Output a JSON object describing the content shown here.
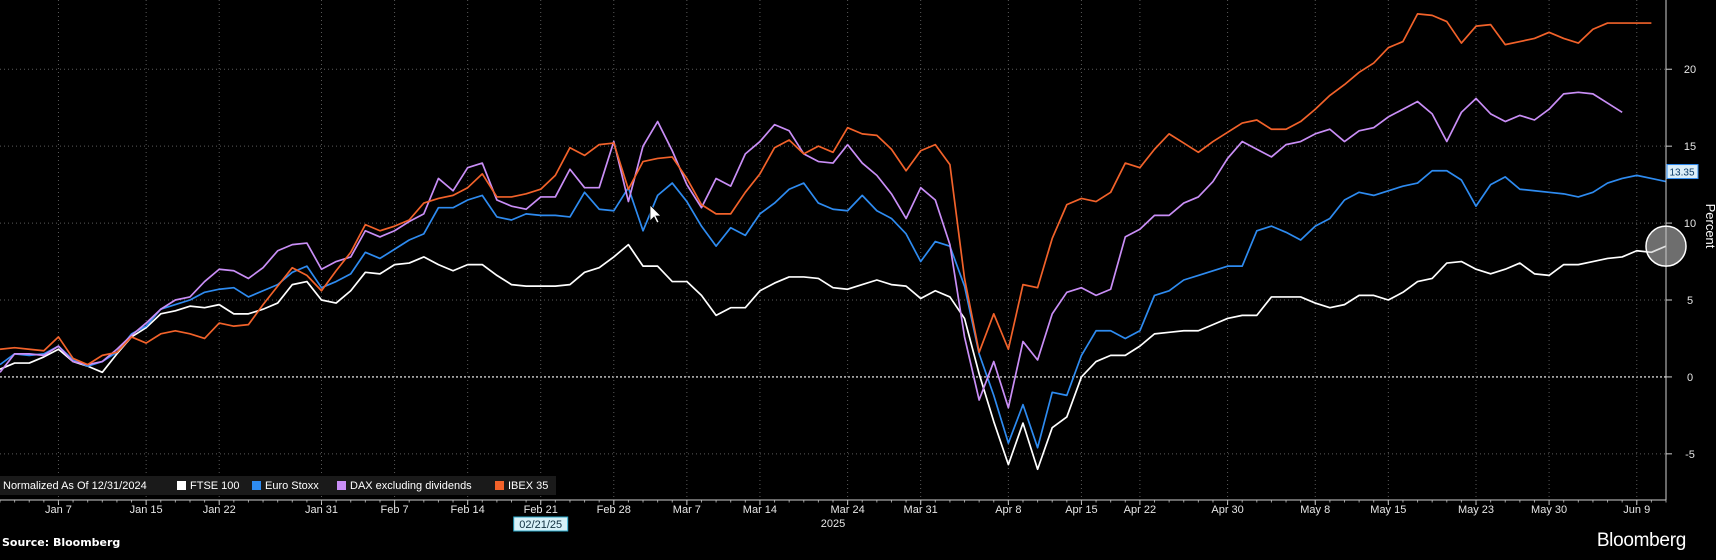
{
  "source_label": "Source: Bloomberg",
  "brand": "Bloomberg",
  "chart_data": {
    "type": "line",
    "ylabel": "Percent",
    "ylim": [
      -8,
      24.5
    ],
    "yticks": [
      -5,
      0,
      5,
      10,
      15,
      20
    ],
    "zero_line": true,
    "grid": true,
    "legend_placement": "bottom-left",
    "normalized_label": "Normalized As Of 12/31/2024",
    "xtick_labels": [
      "Jan 7",
      "Jan 15",
      "Jan 22",
      "Jan 31",
      "Feb 7",
      "Feb 14",
      "Feb 21",
      "Feb 28",
      "Mar 7",
      "Mar 14",
      "Mar 24",
      "Mar 31",
      "Apr 8",
      "Apr 15",
      "Apr 22",
      "Apr 30",
      "May 8",
      "May 15",
      "May 23",
      "May 30",
      "Jun 9"
    ],
    "xtick_index": [
      4,
      10,
      15,
      22,
      27,
      32,
      37,
      42,
      47,
      52,
      58,
      63,
      69,
      74,
      78,
      84,
      90,
      95,
      101,
      106,
      112
    ],
    "year_label": "2025",
    "year_label_index": 57,
    "crosshair_date": "02/21/25",
    "crosshair_index": 37,
    "last_value_label": "13.35",
    "series": [
      {
        "name": "FTSE 100",
        "color": "#ffffff",
        "values": [
          0.5,
          0.9,
          0.9,
          1.3,
          1.8,
          1.0,
          0.7,
          0.3,
          1.5,
          2.6,
          3.2,
          4.1,
          4.3,
          4.6,
          4.5,
          4.7,
          4.1,
          4.1,
          4.4,
          4.8,
          6.0,
          6.2,
          5.0,
          4.8,
          5.6,
          6.8,
          6.7,
          7.3,
          7.4,
          7.8,
          7.3,
          6.9,
          7.3,
          7.3,
          6.6,
          6.0,
          5.9,
          5.9,
          5.9,
          6.0,
          6.8,
          7.1,
          7.8,
          8.6,
          7.2,
          7.2,
          6.2,
          6.2,
          5.3,
          4.0,
          4.5,
          4.5,
          5.6,
          6.1,
          6.5,
          6.5,
          6.4,
          5.8,
          5.7,
          6.0,
          6.3,
          6.0,
          5.9,
          5.1,
          5.6,
          5.2,
          3.8,
          0.2,
          -2.9,
          -5.7,
          -3.0,
          -6.0,
          -3.3,
          -2.6,
          0.0,
          1.0,
          1.4,
          1.4,
          2.0,
          2.8,
          2.9,
          3.0,
          3.0,
          3.4,
          3.8,
          4.0,
          4.0,
          5.2,
          5.2,
          5.2,
          4.8,
          4.5,
          4.7,
          5.3,
          5.3,
          5.0,
          5.5,
          6.2,
          6.4,
          7.4,
          7.5,
          7.0,
          6.7,
          7.0,
          7.4,
          6.7,
          6.6,
          7.3,
          7.3,
          7.5,
          7.7,
          7.8,
          8.2,
          8.1,
          8.5
        ]
      },
      {
        "name": "Euro Stoxx",
        "color": "#2e8bf0",
        "values": [
          0.8,
          1.5,
          1.4,
          1.5,
          2.0,
          1.1,
          0.7,
          1.0,
          1.6,
          2.8,
          3.3,
          4.4,
          4.7,
          5.0,
          5.5,
          5.7,
          5.8,
          5.2,
          5.6,
          6.0,
          6.8,
          7.2,
          5.8,
          6.2,
          6.7,
          8.1,
          7.7,
          8.3,
          8.9,
          9.3,
          11.0,
          11.0,
          11.5,
          11.8,
          10.4,
          10.2,
          10.6,
          10.5,
          10.5,
          10.4,
          12.0,
          10.9,
          10.8,
          12.3,
          9.5,
          11.8,
          12.6,
          11.4,
          9.8,
          8.5,
          9.7,
          9.2,
          10.6,
          11.3,
          12.2,
          12.6,
          11.3,
          10.9,
          10.8,
          11.8,
          10.8,
          10.3,
          9.3,
          7.5,
          8.8,
          8.5,
          5.9,
          1.5,
          -1.2,
          -4.3,
          -1.8,
          -4.6,
          -1.0,
          -1.2,
          1.4,
          3.0,
          3.0,
          2.5,
          3.0,
          5.3,
          5.6,
          6.3,
          6.6,
          6.9,
          7.2,
          7.2,
          9.5,
          9.8,
          9.4,
          8.9,
          9.8,
          10.3,
          11.5,
          12.0,
          11.8,
          12.1,
          12.4,
          12.6,
          13.4,
          13.4,
          12.8,
          11.1,
          12.5,
          13.0,
          12.2,
          12.1,
          12.0,
          11.9,
          11.7,
          12.0,
          12.6,
          12.9,
          13.1,
          12.9,
          12.7
        ]
      },
      {
        "name": "DAX excluding dividends",
        "color": "#c98ef6",
        "values": [
          0.3,
          1.5,
          1.5,
          1.4,
          2.0,
          1.0,
          0.8,
          1.0,
          1.8,
          2.7,
          3.5,
          4.4,
          5.0,
          5.2,
          6.2,
          7.0,
          6.9,
          6.4,
          7.1,
          8.2,
          8.6,
          8.7,
          7.0,
          7.5,
          7.8,
          9.5,
          9.1,
          9.5,
          10.1,
          10.6,
          12.9,
          12.1,
          13.6,
          13.9,
          11.5,
          11.1,
          10.9,
          11.7,
          11.7,
          13.5,
          12.3,
          12.3,
          15.3,
          11.4,
          15.0,
          16.6,
          14.7,
          12.5,
          11.0,
          12.9,
          12.4,
          14.5,
          15.3,
          16.4,
          16.0,
          14.5,
          14.0,
          13.9,
          15.1,
          13.9,
          13.1,
          11.9,
          10.3,
          12.3,
          11.5,
          8.6,
          2.6,
          -1.5,
          1.0,
          -2.0,
          2.3,
          1.1,
          4.1,
          5.5,
          5.8,
          5.3,
          5.7,
          9.1,
          9.6,
          10.5,
          10.5,
          11.3,
          11.7,
          12.7,
          14.2,
          15.3,
          14.8,
          14.3,
          15.1,
          15.3,
          15.8,
          16.1,
          15.3,
          16.0,
          16.2,
          16.9,
          17.4,
          17.9,
          17.1,
          15.3,
          17.2,
          18.1,
          17.1,
          16.6,
          17.0,
          16.7,
          17.4,
          18.4,
          18.5,
          18.4,
          17.8,
          17.2
        ]
      },
      {
        "name": "IBEX 35",
        "color": "#f2622a",
        "values": [
          1.8,
          1.9,
          1.8,
          1.7,
          2.6,
          1.2,
          0.8,
          1.4,
          1.6,
          2.6,
          2.2,
          2.8,
          3.0,
          2.8,
          2.5,
          3.5,
          3.3,
          3.4,
          4.7,
          5.9,
          7.1,
          6.6,
          5.6,
          6.9,
          8.1,
          9.9,
          9.5,
          9.8,
          10.2,
          11.3,
          11.6,
          11.8,
          12.3,
          13.2,
          11.7,
          11.7,
          11.9,
          12.2,
          13.1,
          14.9,
          14.4,
          15.1,
          15.2,
          12.2,
          14.0,
          14.2,
          14.3,
          12.9,
          11.2,
          10.6,
          10.6,
          12.0,
          13.2,
          14.9,
          15.4,
          14.5,
          15.0,
          14.6,
          16.2,
          15.8,
          15.7,
          14.8,
          13.4,
          14.7,
          15.1,
          13.8,
          6.4,
          1.6,
          4.1,
          1.8,
          6.0,
          5.8,
          9.0,
          11.2,
          11.6,
          11.4,
          12.0,
          13.9,
          13.6,
          14.8,
          15.8,
          15.2,
          14.6,
          15.3,
          15.9,
          16.5,
          16.7,
          16.1,
          16.1,
          16.6,
          17.4,
          18.3,
          19.0,
          19.8,
          20.4,
          21.4,
          21.8,
          23.6,
          23.5,
          23.1,
          21.7,
          22.8,
          22.9,
          21.6,
          21.8,
          22.0,
          22.4,
          22.0,
          21.7,
          22.6,
          23.0,
          23.0,
          23.0,
          23.0
        ]
      }
    ]
  }
}
